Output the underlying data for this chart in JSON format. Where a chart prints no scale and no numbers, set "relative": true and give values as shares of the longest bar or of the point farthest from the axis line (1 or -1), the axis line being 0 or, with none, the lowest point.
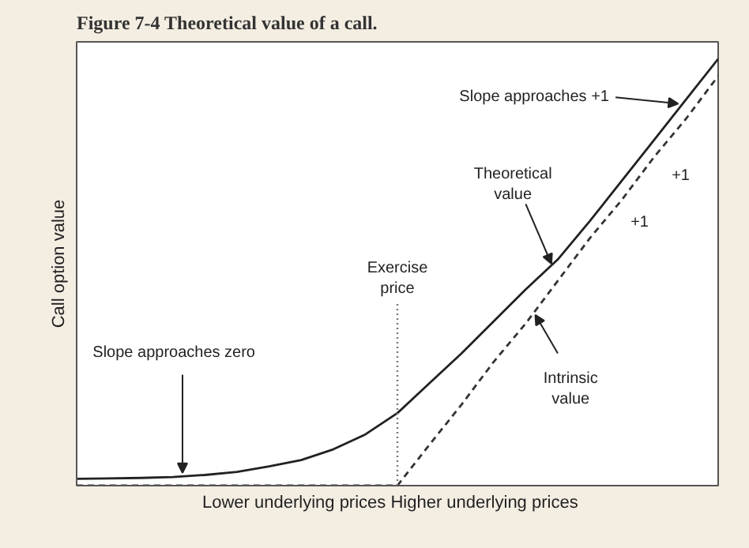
{
  "chart_data": {
    "type": "line",
    "title": "Figure 7-4 Theoretical value of a call.",
    "ylabel": "Call option value",
    "xlabel": "Lower underlying prices    Higher underlying prices",
    "relative": true,
    "categories": [
      null,
      null,
      null,
      null,
      null,
      null,
      null,
      null,
      null,
      null,
      null,
      null,
      null,
      null,
      null,
      null,
      null,
      null,
      null,
      null,
      null
    ],
    "series": [
      {
        "color": "#222222",
        "line_style": "solid",
        "values": [
          0.016,
          0.017,
          0.018,
          0.02,
          0.025,
          0.032,
          0.045,
          0.06,
          0.085,
          0.12,
          0.17,
          0.24,
          0.31,
          0.385,
          0.46,
          0.53,
          0.62,
          0.715,
          0.81,
          0.905,
          1.0
        ]
      },
      {
        "color": "#333333",
        "line_style": "dashed",
        "values": [
          0,
          0,
          0,
          0,
          0,
          0,
          0,
          0,
          0,
          0,
          0,
          0.096,
          0.19,
          0.29,
          0.38,
          0.48,
          0.58,
          0.67,
          0.77,
          0.86,
          0.96
        ]
      }
    ],
    "annotations": [
      "Slope approaches +1",
      "Theoretical value",
      "+1",
      "+1",
      "Intrinsic value",
      "Slope approaches zero",
      "Exercise price"
    ]
  }
}
